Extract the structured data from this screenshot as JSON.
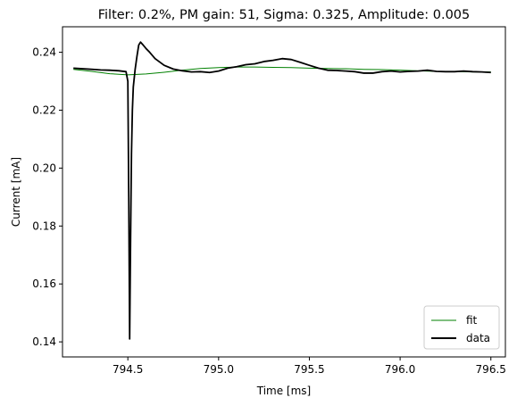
{
  "chart_data": {
    "type": "line",
    "title": "Filter: 0.2%, PM gain: 51, Sigma: 0.325, Amplitude: 0.005",
    "xlabel": "Time [ms]",
    "ylabel": "Current [mA]",
    "xlim": [
      794.14,
      796.58
    ],
    "ylim": [
      0.1348,
      0.2488
    ],
    "xticks": [
      794.5,
      795.0,
      795.5,
      796.0,
      796.5
    ],
    "xtick_labels": [
      "794.5",
      "795.0",
      "795.5",
      "796.0",
      "796.5"
    ],
    "yticks": [
      0.14,
      0.16,
      0.18,
      0.2,
      0.22,
      0.24
    ],
    "ytick_labels": [
      "0.14",
      "0.16",
      "0.18",
      "0.20",
      "0.22",
      "0.24"
    ],
    "grid": false,
    "legend": "lower-right",
    "series": [
      {
        "name": "fit",
        "color": "#008000",
        "x": [
          794.2,
          794.3,
          794.4,
          794.5,
          794.6,
          794.7,
          794.8,
          794.9,
          795.0,
          795.1,
          795.2,
          795.3,
          795.4,
          795.5,
          795.6,
          795.7,
          795.8,
          795.9,
          796.0,
          796.1,
          796.2,
          796.3,
          796.4,
          796.5
        ],
        "y": [
          0.2341,
          0.2334,
          0.2326,
          0.2322,
          0.2325,
          0.2331,
          0.2338,
          0.2344,
          0.2347,
          0.2349,
          0.2349,
          0.2348,
          0.2347,
          0.2345,
          0.2344,
          0.2343,
          0.2341,
          0.234,
          0.2338,
          0.2336,
          0.2334,
          0.2333,
          0.2332,
          0.2332
        ]
      },
      {
        "name": "data",
        "color": "#000000",
        "x": [
          794.2,
          794.25,
          794.3,
          794.35,
          794.4,
          794.45,
          794.49,
          794.5,
          794.505,
          794.51,
          794.515,
          794.52,
          794.525,
          794.53,
          794.54,
          794.55,
          794.56,
          794.57,
          794.58,
          794.6,
          794.62,
          794.65,
          794.7,
          794.75,
          794.8,
          794.85,
          794.9,
          794.95,
          795.0,
          795.05,
          795.1,
          795.15,
          795.2,
          795.25,
          795.3,
          795.35,
          795.4,
          795.45,
          795.5,
          795.55,
          795.6,
          795.65,
          795.7,
          795.75,
          795.8,
          795.85,
          795.9,
          795.95,
          796.0,
          796.05,
          796.1,
          796.15,
          796.2,
          796.25,
          796.3,
          796.35,
          796.4,
          796.45,
          796.5
        ],
        "y": [
          0.2345,
          0.2343,
          0.2341,
          0.2339,
          0.2338,
          0.2336,
          0.2333,
          0.23,
          0.19,
          0.141,
          0.175,
          0.205,
          0.22,
          0.228,
          0.234,
          0.2385,
          0.2425,
          0.2435,
          0.2428,
          0.2413,
          0.24,
          0.2378,
          0.2355,
          0.2342,
          0.2336,
          0.2332,
          0.2333,
          0.233,
          0.2335,
          0.2345,
          0.235,
          0.2357,
          0.236,
          0.2368,
          0.2372,
          0.2378,
          0.2375,
          0.2365,
          0.2355,
          0.2345,
          0.2338,
          0.2337,
          0.2335,
          0.2333,
          0.2328,
          0.2328,
          0.2333,
          0.2335,
          0.2332,
          0.2334,
          0.2335,
          0.2338,
          0.2334,
          0.2333,
          0.2333,
          0.2335,
          0.2333,
          0.2332,
          0.233
        ]
      }
    ]
  }
}
